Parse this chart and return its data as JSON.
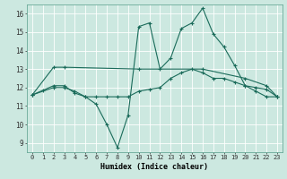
{
  "title": "",
  "xlabel": "Humidex (Indice chaleur)",
  "background_color": "#cce8e0",
  "grid_color": "#ffffff",
  "line_color": "#1a6b5a",
  "xlim": [
    -0.5,
    23.5
  ],
  "ylim": [
    8.5,
    16.5
  ],
  "xticks": [
    0,
    1,
    2,
    3,
    4,
    5,
    6,
    7,
    8,
    9,
    10,
    11,
    12,
    13,
    14,
    15,
    16,
    17,
    18,
    19,
    20,
    21,
    22,
    23
  ],
  "yticks": [
    9,
    10,
    11,
    12,
    13,
    14,
    15,
    16
  ],
  "line1_x": [
    0,
    1,
    2,
    3,
    4,
    5,
    6,
    7,
    8,
    9,
    10,
    11,
    12,
    13,
    14,
    15,
    16,
    17,
    18,
    19,
    20,
    21,
    22,
    23
  ],
  "line1_y": [
    11.6,
    11.85,
    12.1,
    12.1,
    11.7,
    11.5,
    11.1,
    10.0,
    8.75,
    10.5,
    15.3,
    15.5,
    13.0,
    13.6,
    15.2,
    15.5,
    16.3,
    14.9,
    14.2,
    13.2,
    12.1,
    12.0,
    11.9,
    11.5
  ],
  "line2_x": [
    0,
    2,
    3,
    10,
    16,
    20,
    22,
    23
  ],
  "line2_y": [
    11.6,
    13.1,
    13.1,
    13.0,
    13.0,
    12.5,
    12.1,
    11.5
  ],
  "line3_x": [
    0,
    2,
    3,
    4,
    5,
    6,
    7,
    8,
    9,
    10,
    11,
    12,
    13,
    14,
    15,
    16,
    17,
    18,
    19,
    20,
    21,
    22,
    23
  ],
  "line3_y": [
    11.6,
    12.0,
    12.0,
    11.8,
    11.5,
    11.5,
    11.5,
    11.5,
    11.5,
    11.8,
    11.9,
    12.0,
    12.5,
    12.8,
    13.0,
    12.8,
    12.5,
    12.5,
    12.3,
    12.1,
    11.8,
    11.5,
    11.5
  ]
}
